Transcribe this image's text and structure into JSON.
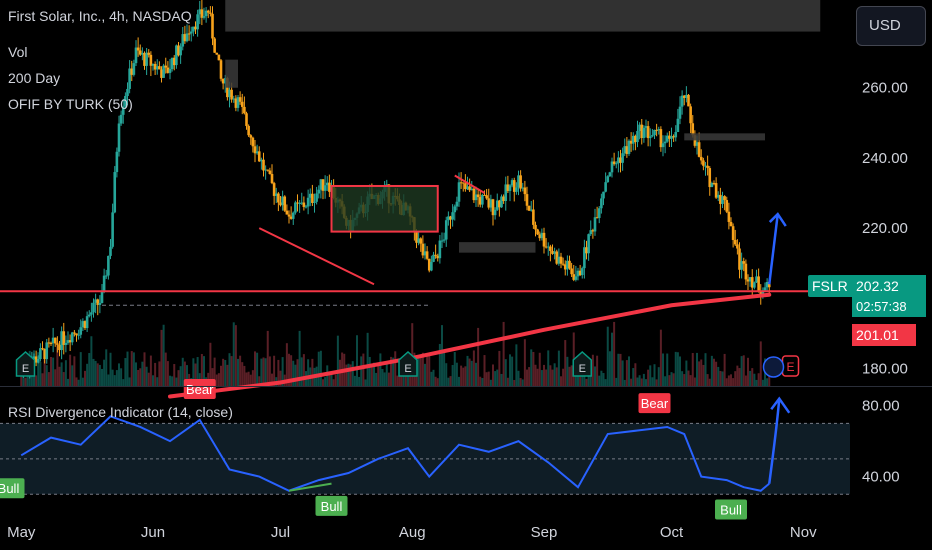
{
  "legend": {
    "symbol_line": "First Solar, Inc., 4h, NASDAQ",
    "vol": "Vol",
    "ma": "200 Day",
    "ofif": "OFIF BY TURK (50)",
    "rsi": "RSI Divergence Indicator (14, close)"
  },
  "currency_button": "USD",
  "price_tags": {
    "ticker": "FSLR",
    "last_price": "202.32",
    "countdown": "02:57:38",
    "ma_price": "201.01"
  },
  "colors": {
    "up": "#26a69a",
    "down": "#f7a21b",
    "ma_line": "#f23645",
    "support_line": "#f23645",
    "rsi_line": "#2962ff",
    "arrow": "#2962ff",
    "zone_box": "#f23645",
    "bull_label": "#4caf50",
    "bear_label": "#f23645"
  },
  "chart_data": {
    "type": "candlestick",
    "price_axis": {
      "ticks": [
        "260.00",
        "240.00",
        "220.00",
        "180.00"
      ],
      "tick_values": [
        260,
        240,
        220,
        180
      ],
      "range": [
        175,
        285
      ]
    },
    "time_axis": {
      "labels": [
        "May",
        "Jun",
        "Jul",
        "Aug",
        "Sep",
        "Oct",
        "Nov"
      ]
    },
    "price_path": [
      {
        "date": "2024-05-01",
        "price": 180
      },
      {
        "date": "2024-05-08",
        "price": 186
      },
      {
        "date": "2024-05-15",
        "price": 192
      },
      {
        "date": "2024-05-20",
        "price": 200
      },
      {
        "date": "2024-05-22",
        "price": 216
      },
      {
        "date": "2024-05-24",
        "price": 252
      },
      {
        "date": "2024-05-28",
        "price": 270
      },
      {
        "date": "2024-06-04",
        "price": 264
      },
      {
        "date": "2024-06-10",
        "price": 278
      },
      {
        "date": "2024-06-14",
        "price": 282
      },
      {
        "date": "2024-06-17",
        "price": 262
      },
      {
        "date": "2024-06-21",
        "price": 256
      },
      {
        "date": "2024-06-28",
        "price": 234
      },
      {
        "date": "2024-07-03",
        "price": 224
      },
      {
        "date": "2024-07-08",
        "price": 228
      },
      {
        "date": "2024-07-12",
        "price": 234
      },
      {
        "date": "2024-07-17",
        "price": 220
      },
      {
        "date": "2024-07-22",
        "price": 228
      },
      {
        "date": "2024-07-26",
        "price": 230
      },
      {
        "date": "2024-07-31",
        "price": 224
      },
      {
        "date": "2024-08-05",
        "price": 208
      },
      {
        "date": "2024-08-08",
        "price": 216
      },
      {
        "date": "2024-08-12",
        "price": 232
      },
      {
        "date": "2024-08-20",
        "price": 226
      },
      {
        "date": "2024-08-26",
        "price": 234
      },
      {
        "date": "2024-08-30",
        "price": 220
      },
      {
        "date": "2024-09-05",
        "price": 210
      },
      {
        "date": "2024-09-09",
        "price": 206
      },
      {
        "date": "2024-09-16",
        "price": 236
      },
      {
        "date": "2024-09-24",
        "price": 248
      },
      {
        "date": "2024-10-01",
        "price": 244
      },
      {
        "date": "2024-10-04",
        "price": 258
      },
      {
        "date": "2024-10-08",
        "price": 238
      },
      {
        "date": "2024-10-14",
        "price": 226
      },
      {
        "date": "2024-10-17",
        "price": 210
      },
      {
        "date": "2024-10-21",
        "price": 204
      },
      {
        "date": "2024-10-24",
        "price": 202.32
      }
    ],
    "ma_200": {
      "name": "200 Day",
      "points": [
        {
          "date": "2024-06-05",
          "value": 172
        },
        {
          "date": "2024-07-01",
          "value": 176
        },
        {
          "date": "2024-08-01",
          "value": 183
        },
        {
          "date": "2024-09-01",
          "value": 191
        },
        {
          "date": "2024-10-01",
          "value": 198
        },
        {
          "date": "2024-10-24",
          "value": 201.01
        }
      ]
    },
    "support_level": 202,
    "rsi": {
      "axis_ticks": [
        "80.00",
        "40.00"
      ],
      "tick_values": [
        80,
        40
      ],
      "range": [
        20,
        90
      ],
      "bands": [
        70,
        30
      ],
      "labels": [
        "Bear",
        "Bear",
        "Bull",
        "Bull",
        "Bull"
      ],
      "path": [
        {
          "date": "2024-05-01",
          "value": 52
        },
        {
          "date": "2024-05-08",
          "value": 62
        },
        {
          "date": "2024-05-15",
          "value": 58
        },
        {
          "date": "2024-05-22",
          "value": 74
        },
        {
          "date": "2024-05-29",
          "value": 68
        },
        {
          "date": "2024-06-05",
          "value": 60
        },
        {
          "date": "2024-06-12",
          "value": 72
        },
        {
          "date": "2024-06-19",
          "value": 44
        },
        {
          "date": "2024-06-26",
          "value": 40
        },
        {
          "date": "2024-07-03",
          "value": 32
        },
        {
          "date": "2024-07-10",
          "value": 38
        },
        {
          "date": "2024-07-17",
          "value": 42
        },
        {
          "date": "2024-07-24",
          "value": 50
        },
        {
          "date": "2024-07-31",
          "value": 56
        },
        {
          "date": "2024-08-05",
          "value": 40
        },
        {
          "date": "2024-08-12",
          "value": 58
        },
        {
          "date": "2024-08-19",
          "value": 54
        },
        {
          "date": "2024-08-26",
          "value": 60
        },
        {
          "date": "2024-09-02",
          "value": 48
        },
        {
          "date": "2024-09-09",
          "value": 34
        },
        {
          "date": "2024-09-16",
          "value": 64
        },
        {
          "date": "2024-09-23",
          "value": 66
        },
        {
          "date": "2024-09-30",
          "value": 68
        },
        {
          "date": "2024-10-04",
          "value": 64
        },
        {
          "date": "2024-10-08",
          "value": 40
        },
        {
          "date": "2024-10-14",
          "value": 38
        },
        {
          "date": "2024-10-18",
          "value": 34
        },
        {
          "date": "2024-10-22",
          "value": 32
        },
        {
          "date": "2024-10-24",
          "value": 36
        }
      ]
    }
  }
}
